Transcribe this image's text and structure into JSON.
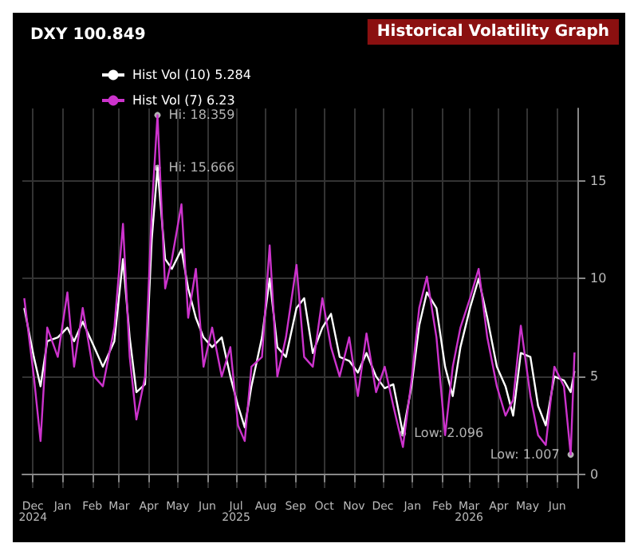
{
  "chart_data": {
    "type": "line",
    "title": "Historical Volatility Graph",
    "subtitle": "DXY 100.849",
    "xlim": [
      "2024-11-20",
      "2026-06-22"
    ],
    "xticks": [
      {
        "value": "2024-12-01",
        "label": "Dec\n2024"
      },
      {
        "value": "2025-01-01",
        "label": "Jan"
      },
      {
        "value": "2025-02-01",
        "label": "Feb"
      },
      {
        "value": "2025-03-01",
        "label": "Mar"
      },
      {
        "value": "2025-04-01",
        "label": "Apr"
      },
      {
        "value": "2025-05-01",
        "label": "May"
      },
      {
        "value": "2025-06-01",
        "label": "Jun"
      },
      {
        "value": "2025-07-01",
        "label": "Jul\n2025"
      },
      {
        "value": "2025-08-01",
        "label": "Aug"
      },
      {
        "value": "2025-09-01",
        "label": "Sep"
      },
      {
        "value": "2025-10-01",
        "label": "Oct"
      },
      {
        "value": "2025-11-01",
        "label": "Nov"
      },
      {
        "value": "2025-12-01",
        "label": "Dec"
      },
      {
        "value": "2026-01-01",
        "label": "Jan"
      },
      {
        "value": "2026-02-01",
        "label": "Feb"
      },
      {
        "value": "2026-03-01",
        "label": "Mar\n2026"
      },
      {
        "value": "2026-04-01",
        "label": "Apr"
      },
      {
        "value": "2026-05-01",
        "label": "May"
      },
      {
        "value": "2026-06-01",
        "label": "Jun"
      }
    ],
    "ylim": [
      -0.7,
      18.7
    ],
    "yticks": [
      0,
      5,
      10,
      15
    ],
    "grid": true,
    "legend": "top left",
    "marker": "none",
    "line_style": "solid",
    "x": [
      "2024-11-22",
      "2024-12-02",
      "2024-12-09",
      "2024-12-16",
      "2024-12-27",
      "2025-01-06",
      "2025-01-13",
      "2025-01-22",
      "2025-02-03",
      "2025-02-12",
      "2025-02-24",
      "2025-03-05",
      "2025-03-12",
      "2025-03-19",
      "2025-03-28",
      "2025-04-04",
      "2025-04-10",
      "2025-04-18",
      "2025-04-25",
      "2025-05-05",
      "2025-05-12",
      "2025-05-20",
      "2025-05-28",
      "2025-06-06",
      "2025-06-16",
      "2025-06-25",
      "2025-07-03",
      "2025-07-10",
      "2025-07-17",
      "2025-07-28",
      "2025-08-05",
      "2025-08-13",
      "2025-08-22",
      "2025-09-02",
      "2025-09-10",
      "2025-09-19",
      "2025-09-29",
      "2025-10-08",
      "2025-10-17",
      "2025-10-27",
      "2025-11-05",
      "2025-11-14",
      "2025-11-24",
      "2025-12-03",
      "2025-12-12",
      "2025-12-22",
      "2025-12-31",
      "2026-01-08",
      "2026-01-16",
      "2026-01-26",
      "2026-02-04",
      "2026-02-12",
      "2026-02-20",
      "2026-03-02",
      "2026-03-11",
      "2026-03-20",
      "2026-03-30",
      "2026-04-08",
      "2026-04-16",
      "2026-04-24",
      "2026-05-04",
      "2026-05-12",
      "2026-05-20",
      "2026-05-29",
      "2026-06-08",
      "2026-06-15",
      "2026-06-19"
    ],
    "series": [
      {
        "name": "Hist Vol (10) 5.284",
        "color": "#ffffff",
        "values": [
          8.5,
          6.0,
          4.5,
          6.8,
          7.0,
          7.5,
          6.8,
          7.8,
          6.5,
          5.5,
          6.8,
          11.0,
          7.0,
          4.2,
          4.6,
          12.0,
          15.666,
          11.0,
          10.5,
          11.5,
          9.5,
          8.0,
          7.0,
          6.5,
          7.0,
          5.0,
          3.5,
          2.4,
          4.5,
          7.0,
          10.0,
          6.5,
          6.0,
          8.5,
          9.0,
          6.2,
          7.5,
          8.2,
          6.0,
          5.8,
          5.2,
          6.2,
          5.0,
          4.4,
          4.6,
          2.096,
          4.5,
          7.6,
          9.3,
          8.5,
          5.5,
          4.0,
          6.5,
          8.5,
          10.0,
          8.0,
          5.5,
          4.5,
          3.0,
          6.2,
          6.0,
          3.5,
          2.5,
          5.0,
          4.8,
          4.2,
          5.284
        ]
      },
      {
        "name": "Hist Vol (7) 6.23",
        "color": "#cc33cc",
        "values": [
          9.0,
          5.0,
          1.7,
          7.5,
          6.0,
          9.3,
          5.5,
          8.5,
          5.0,
          4.5,
          7.5,
          12.8,
          6.0,
          2.8,
          5.0,
          13.5,
          18.359,
          9.5,
          11.0,
          13.8,
          8.0,
          10.5,
          5.5,
          7.5,
          5.0,
          6.5,
          2.5,
          1.7,
          5.5,
          6.0,
          11.7,
          5.0,
          7.0,
          10.7,
          6.0,
          5.5,
          9.0,
          6.5,
          5.0,
          7.0,
          4.0,
          7.2,
          4.2,
          5.5,
          3.5,
          1.4,
          4.8,
          8.5,
          10.1,
          7.0,
          2.0,
          5.5,
          7.5,
          9.0,
          10.5,
          7.0,
          4.5,
          3.0,
          3.8,
          7.6,
          4.0,
          2.0,
          1.5,
          5.5,
          4.5,
          1.007,
          6.23
        ]
      }
    ],
    "annotations": [
      {
        "text": "Hi: 18.359",
        "x": "2025-04-10",
        "y": 18.359
      },
      {
        "text": "Hi: 15.666",
        "x": "2025-04-10",
        "y": 15.666
      },
      {
        "text": "Low: 2.096",
        "x": "2025-12-22",
        "y": 2.096
      },
      {
        "text": "Low: 1.007",
        "x": "2026-06-15",
        "y": 1.007
      }
    ]
  }
}
